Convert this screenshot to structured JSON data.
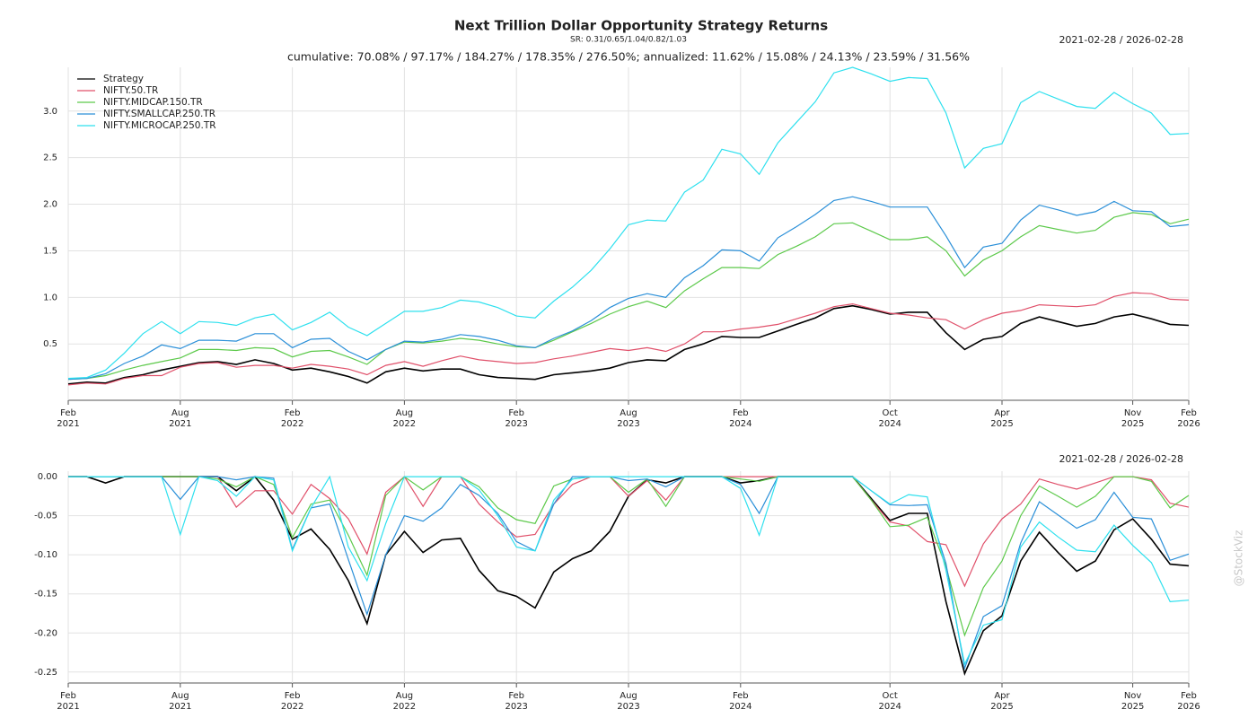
{
  "chart_data": [
    {
      "type": "line",
      "title": "Next Trillion Dollar Opportunity Strategy Returns",
      "subtitle": "SR: 0.31/0.65/1.04/0.82/1.03",
      "annotation": "cumulative: 70.08% / 97.17% / 184.27% / 178.35% / 276.50%; annualized: 11.62% / 15.08% / 24.13% / 23.59% / 31.56%",
      "date_range": "2021-02-28 / 2026-02-28",
      "legend": "upper left",
      "grid": true,
      "x": [
        "2021-02",
        "2021-03",
        "2021-04",
        "2021-05",
        "2021-06",
        "2021-07",
        "2021-08",
        "2021-09",
        "2021-10",
        "2021-11",
        "2021-12",
        "2022-01",
        "2022-02",
        "2022-03",
        "2022-04",
        "2022-05",
        "2022-06",
        "2022-07",
        "2022-08",
        "2022-09",
        "2022-10",
        "2022-11",
        "2022-12",
        "2023-01",
        "2023-02",
        "2023-03",
        "2023-04",
        "2023-05",
        "2023-06",
        "2023-07",
        "2023-08",
        "2023-09",
        "2023-10",
        "2023-11",
        "2023-12",
        "2024-01",
        "2024-02",
        "2024-03",
        "2024-04",
        "2024-05",
        "2024-06",
        "2024-07",
        "2024-08",
        "2024-09",
        "2024-10",
        "2024-11",
        "2024-12",
        "2025-01",
        "2025-02",
        "2025-03",
        "2025-04",
        "2025-05",
        "2025-06",
        "2025-07",
        "2025-08",
        "2025-09",
        "2025-10",
        "2025-11",
        "2025-12",
        "2026-01",
        "2026-02"
      ],
      "xticks": [
        {
          "value": "2021-02",
          "label": "Feb 2021"
        },
        {
          "value": "2021-08",
          "label": "Aug 2021"
        },
        {
          "value": "2022-02",
          "label": "Feb 2022"
        },
        {
          "value": "2022-08",
          "label": "Aug 2022"
        },
        {
          "value": "2023-02",
          "label": "Feb 2023"
        },
        {
          "value": "2023-08",
          "label": "Aug 2023"
        },
        {
          "value": "2024-02",
          "label": "Feb 2024"
        },
        {
          "value": "2024-10",
          "label": "Oct 2024"
        },
        {
          "value": "2025-04",
          "label": "Apr 2025"
        },
        {
          "value": "2025-11",
          "label": "Nov 2025"
        },
        {
          "value": "2026-02",
          "label": "Feb 2026"
        }
      ],
      "ylim": [
        -0.105,
        3.47
      ],
      "yticks": [
        0.5,
        {
          "value": 1,
          "label": "1.0"
        },
        1.5,
        {
          "value": 2,
          "label": "2.0"
        },
        2.5,
        {
          "value": 3,
          "label": "3.0"
        }
      ],
      "series": [
        {
          "name": "Strategy",
          "color": "#000000",
          "values": [
            0.07,
            0.09,
            0.08,
            0.14,
            0.17,
            0.22,
            0.26,
            0.3,
            0.31,
            0.28,
            0.33,
            0.29,
            0.22,
            0.24,
            0.2,
            0.15,
            0.08,
            0.2,
            0.24,
            0.21,
            0.23,
            0.23,
            0.17,
            0.14,
            0.13,
            0.12,
            0.17,
            0.19,
            0.21,
            0.24,
            0.3,
            0.33,
            0.32,
            0.44,
            0.5,
            0.58,
            0.57,
            0.57,
            0.64,
            0.71,
            0.78,
            0.88,
            0.91,
            0.87,
            0.82,
            0.84,
            0.84,
            0.62,
            0.44,
            0.55,
            0.58,
            0.72,
            0.79,
            0.74,
            0.69,
            0.72,
            0.79,
            0.82,
            0.77,
            0.71,
            0.7
          ]
        },
        {
          "name": "NIFTY.50.TR",
          "color": "#e0506a",
          "values": [
            0.06,
            0.08,
            0.07,
            0.13,
            0.16,
            0.16,
            0.25,
            0.29,
            0.3,
            0.25,
            0.27,
            0.27,
            0.24,
            0.28,
            0.26,
            0.23,
            0.17,
            0.27,
            0.31,
            0.26,
            0.32,
            0.37,
            0.33,
            0.31,
            0.29,
            0.3,
            0.34,
            0.37,
            0.41,
            0.45,
            0.43,
            0.46,
            0.42,
            0.5,
            0.63,
            0.63,
            0.66,
            0.68,
            0.71,
            0.77,
            0.83,
            0.9,
            0.93,
            0.88,
            0.83,
            0.81,
            0.78,
            0.76,
            0.66,
            0.76,
            0.83,
            0.86,
            0.92,
            0.91,
            0.9,
            0.92,
            1.01,
            1.05,
            1.04,
            0.98,
            0.97
          ]
        },
        {
          "name": "NIFTY.MIDCAP.150.TR",
          "color": "#5cc94a",
          "values": [
            0.12,
            0.13,
            0.16,
            0.22,
            0.27,
            0.31,
            0.35,
            0.44,
            0.44,
            0.43,
            0.46,
            0.45,
            0.36,
            0.42,
            0.43,
            0.36,
            0.28,
            0.44,
            0.52,
            0.51,
            0.53,
            0.56,
            0.54,
            0.5,
            0.47,
            0.46,
            0.54,
            0.63,
            0.72,
            0.82,
            0.9,
            0.96,
            0.89,
            1.07,
            1.2,
            1.32,
            1.32,
            1.31,
            1.46,
            1.55,
            1.65,
            1.79,
            1.8,
            1.71,
            1.62,
            1.62,
            1.65,
            1.5,
            1.23,
            1.4,
            1.5,
            1.65,
            1.77,
            1.73,
            1.69,
            1.72,
            1.86,
            1.91,
            1.89,
            1.79,
            1.84
          ]
        },
        {
          "name": "NIFTY.SMALLCAP.250.TR",
          "color": "#2a8fd8",
          "values": [
            0.12,
            0.13,
            0.18,
            0.29,
            0.37,
            0.49,
            0.45,
            0.54,
            0.54,
            0.53,
            0.61,
            0.61,
            0.46,
            0.55,
            0.56,
            0.42,
            0.33,
            0.44,
            0.53,
            0.52,
            0.55,
            0.6,
            0.58,
            0.54,
            0.48,
            0.46,
            0.56,
            0.64,
            0.75,
            0.89,
            0.99,
            1.04,
            1.0,
            1.21,
            1.34,
            1.51,
            1.5,
            1.39,
            1.64,
            1.76,
            1.89,
            2.04,
            2.08,
            2.03,
            1.97,
            1.97,
            1.97,
            1.66,
            1.32,
            1.54,
            1.58,
            1.83,
            1.99,
            1.94,
            1.88,
            1.92,
            2.03,
            1.93,
            1.92,
            1.76,
            1.78
          ]
        },
        {
          "name": "NIFTY.MICROCAP.250.TR",
          "color": "#2ee0ee",
          "values": [
            0.13,
            0.14,
            0.22,
            0.4,
            0.61,
            0.74,
            0.61,
            0.74,
            0.73,
            0.7,
            0.78,
            0.82,
            0.65,
            0.73,
            0.84,
            0.68,
            0.59,
            0.72,
            0.85,
            0.85,
            0.89,
            0.97,
            0.95,
            0.89,
            0.8,
            0.78,
            0.96,
            1.11,
            1.29,
            1.52,
            1.78,
            1.83,
            1.82,
            2.13,
            2.26,
            2.59,
            2.54,
            2.32,
            2.66,
            2.88,
            3.1,
            3.41,
            3.47,
            3.4,
            3.32,
            3.36,
            3.35,
            2.98,
            2.39,
            2.6,
            2.65,
            3.09,
            3.21,
            3.13,
            3.05,
            3.03,
            3.2,
            3.08,
            2.98,
            2.75,
            2.76
          ]
        }
      ]
    },
    {
      "type": "line",
      "date_range": "2021-02-28 / 2026-02-28",
      "watermark": "@StockViz",
      "grid": true,
      "x": [
        "2021-02",
        "2021-03",
        "2021-04",
        "2021-05",
        "2021-06",
        "2021-07",
        "2021-08",
        "2021-09",
        "2021-10",
        "2021-11",
        "2021-12",
        "2022-01",
        "2022-02",
        "2022-03",
        "2022-04",
        "2022-05",
        "2022-06",
        "2022-07",
        "2022-08",
        "2022-09",
        "2022-10",
        "2022-11",
        "2022-12",
        "2023-01",
        "2023-02",
        "2023-03",
        "2023-04",
        "2023-05",
        "2023-06",
        "2023-07",
        "2023-08",
        "2023-09",
        "2023-10",
        "2023-11",
        "2023-12",
        "2024-01",
        "2024-02",
        "2024-03",
        "2024-04",
        "2024-05",
        "2024-06",
        "2024-07",
        "2024-08",
        "2024-09",
        "2024-10",
        "2024-11",
        "2024-12",
        "2025-01",
        "2025-02",
        "2025-03",
        "2025-04",
        "2025-05",
        "2025-06",
        "2025-07",
        "2025-08",
        "2025-09",
        "2025-10",
        "2025-11",
        "2025-12",
        "2026-01",
        "2026-02"
      ],
      "xticks": [
        {
          "value": "2021-02",
          "label": "Feb 2021"
        },
        {
          "value": "2021-08",
          "label": "Aug 2021"
        },
        {
          "value": "2022-02",
          "label": "Feb 2022"
        },
        {
          "value": "2022-08",
          "label": "Aug 2022"
        },
        {
          "value": "2023-02",
          "label": "Feb 2023"
        },
        {
          "value": "2023-08",
          "label": "Aug 2023"
        },
        {
          "value": "2024-02",
          "label": "Feb 2024"
        },
        {
          "value": "2024-10",
          "label": "Oct 2024"
        },
        {
          "value": "2025-04",
          "label": "Apr 2025"
        },
        {
          "value": "2025-11",
          "label": "Nov 2025"
        },
        {
          "value": "2026-02",
          "label": "Feb 2026"
        }
      ],
      "ylim": [
        -0.264,
        0.007
      ],
      "yticks": [
        {
          "value": 0,
          "label": "0.00"
        },
        -0.05,
        {
          "value": -0.1,
          "label": "-0.10"
        },
        -0.15,
        {
          "value": -0.2,
          "label": "-0.20"
        },
        -0.25
      ],
      "series": [
        {
          "color": "#000000",
          "values": [
            0,
            0,
            -0.008,
            0,
            0,
            0,
            0,
            0,
            0,
            -0.018,
            0,
            -0.03,
            -0.08,
            -0.067,
            -0.093,
            -0.133,
            -0.188,
            -0.1,
            -0.07,
            -0.097,
            -0.081,
            -0.079,
            -0.12,
            -0.146,
            -0.153,
            -0.168,
            -0.122,
            -0.105,
            -0.095,
            -0.07,
            -0.025,
            -0.004,
            -0.008,
            0,
            0,
            0,
            -0.008,
            -0.005,
            0,
            0,
            0,
            0,
            0,
            -0.028,
            -0.056,
            -0.047,
            -0.047,
            -0.16,
            -0.252,
            -0.197,
            -0.178,
            -0.108,
            -0.071,
            -0.097,
            -0.121,
            -0.108,
            -0.068,
            -0.054,
            -0.08,
            -0.112,
            -0.114
          ]
        },
        {
          "color": "#e0506a",
          "values": [
            0,
            0,
            0,
            0,
            0,
            0,
            0,
            0,
            0,
            -0.039,
            -0.018,
            -0.018,
            -0.048,
            -0.01,
            -0.028,
            -0.054,
            -0.099,
            -0.02,
            0,
            -0.038,
            0,
            0,
            -0.035,
            -0.058,
            -0.077,
            -0.074,
            -0.035,
            -0.01,
            0,
            0,
            -0.025,
            -0.005,
            -0.03,
            0,
            0,
            0,
            0,
            0,
            0,
            0,
            0,
            0,
            0,
            -0.03,
            -0.058,
            -0.063,
            -0.083,
            -0.087,
            -0.14,
            -0.086,
            -0.054,
            -0.035,
            -0.003,
            -0.01,
            -0.016,
            -0.008,
            0,
            0,
            -0.004,
            -0.034,
            -0.039
          ]
        },
        {
          "color": "#5cc94a",
          "values": [
            0,
            0,
            0,
            0,
            0,
            0,
            0,
            0,
            -0.003,
            -0.013,
            0,
            -0.01,
            -0.078,
            -0.035,
            -0.03,
            -0.075,
            -0.126,
            -0.024,
            0,
            -0.017,
            0,
            0,
            -0.013,
            -0.04,
            -0.055,
            -0.06,
            -0.012,
            -0.003,
            0,
            0,
            -0.02,
            -0.003,
            -0.038,
            0,
            0,
            0,
            -0.003,
            -0.006,
            0,
            0,
            0,
            0,
            0,
            -0.03,
            -0.064,
            -0.062,
            -0.052,
            -0.115,
            -0.203,
            -0.142,
            -0.108,
            -0.05,
            -0.012,
            -0.025,
            -0.039,
            -0.025,
            0,
            0,
            -0.006,
            -0.04,
            -0.024
          ]
        },
        {
          "color": "#2a8fd8",
          "values": [
            0,
            0,
            0,
            0,
            0,
            0,
            -0.029,
            0,
            0,
            -0.004,
            0,
            -0.002,
            -0.093,
            -0.04,
            -0.035,
            -0.106,
            -0.176,
            -0.1,
            -0.05,
            -0.057,
            -0.04,
            -0.01,
            -0.024,
            -0.047,
            -0.083,
            -0.095,
            -0.035,
            0,
            0,
            0,
            -0.005,
            -0.003,
            -0.013,
            0,
            0,
            0,
            -0.01,
            -0.047,
            0,
            0,
            0,
            0,
            0,
            -0.018,
            -0.036,
            -0.037,
            -0.036,
            -0.111,
            -0.245,
            -0.179,
            -0.165,
            -0.085,
            -0.032,
            -0.049,
            -0.066,
            -0.055,
            -0.02,
            -0.052,
            -0.054,
            -0.107,
            -0.099
          ]
        },
        {
          "color": "#2ee0ee",
          "values": [
            0,
            0,
            0,
            0,
            0,
            0,
            -0.074,
            0,
            -0.005,
            -0.025,
            0,
            -0.004,
            -0.095,
            -0.04,
            0,
            -0.09,
            -0.133,
            -0.06,
            0,
            0,
            0,
            0,
            -0.017,
            -0.05,
            -0.09,
            -0.095,
            -0.03,
            -0.003,
            0,
            0,
            0,
            0,
            0,
            0,
            0,
            0,
            -0.015,
            -0.075,
            0,
            0,
            0,
            0,
            0,
            -0.018,
            -0.035,
            -0.023,
            -0.026,
            -0.12,
            -0.24,
            -0.19,
            -0.183,
            -0.09,
            -0.058,
            -0.077,
            -0.094,
            -0.096,
            -0.062,
            -0.088,
            -0.11,
            -0.16,
            -0.158
          ]
        }
      ]
    }
  ]
}
